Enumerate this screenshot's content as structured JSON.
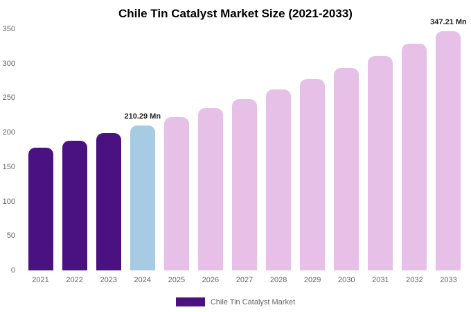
{
  "title": "Chile Tin Catalyst Market Size (2021-2033)",
  "legend": {
    "label": "Chile Tin Catalyst Market",
    "swatch_color": "#4a1180"
  },
  "colors": {
    "historical": "#4a1180",
    "highlight": "#a6cbe3",
    "forecast": "#e6c0e7",
    "background": "#ffffff",
    "axis_text": "#666666",
    "data_label_text": "#222222"
  },
  "chart_data": {
    "type": "bar",
    "title": "Chile Tin Catalyst Market Size (2021-2033)",
    "categories": [
      "2021",
      "2022",
      "2023",
      "2024",
      "2025",
      "2026",
      "2027",
      "2028",
      "2029",
      "2030",
      "2031",
      "2032",
      "2033"
    ],
    "values": [
      177.9,
      188.1,
      198.9,
      210.29,
      222.3,
      235.1,
      248.5,
      262.8,
      277.8,
      293.7,
      310.6,
      328.4,
      347.21
    ],
    "unit": "Mn",
    "xlabel": "",
    "ylabel": "",
    "ylim": [
      0,
      350
    ],
    "yticks": [
      0,
      50,
      100,
      150,
      200,
      250,
      300,
      350
    ],
    "grid": false,
    "legend_position": "bottom",
    "bar_styles": [
      "historical",
      "historical",
      "historical",
      "highlight",
      "forecast",
      "forecast",
      "forecast",
      "forecast",
      "forecast",
      "forecast",
      "forecast",
      "forecast",
      "forecast"
    ],
    "data_labels": [
      {
        "index": 3,
        "text": "210.29 Mn"
      },
      {
        "index": 12,
        "text": "347.21 Mn"
      }
    ]
  }
}
